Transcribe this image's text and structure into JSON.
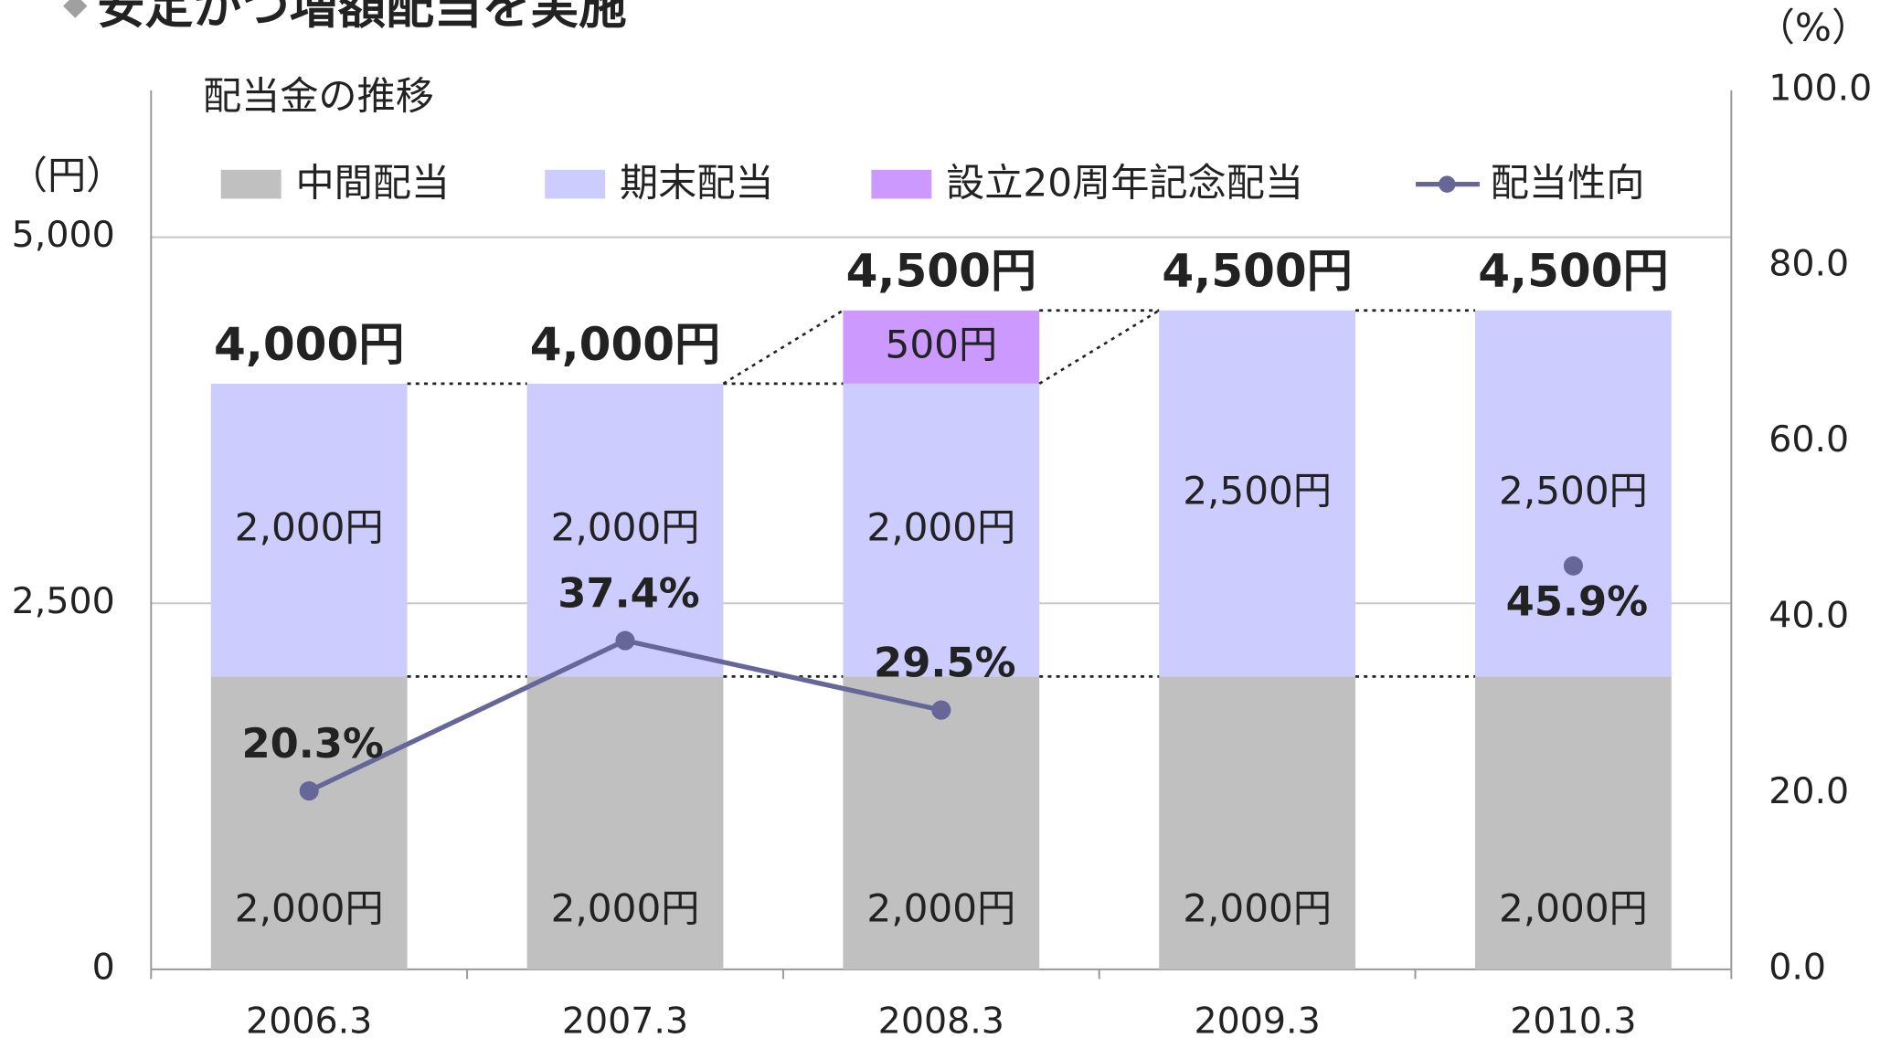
{
  "chart_data": {
    "type": "stacked_bar_line",
    "title": "安定かつ増額配当を実施",
    "subtitle": "配当金の推移",
    "y_label": "（円）",
    "y2_label": "（%）",
    "categories": [
      "2006.3",
      "2007.3",
      "2008.3",
      "2009.3",
      "2010.3"
    ],
    "series": [
      {
        "name": "中間配当",
        "color": "#c0c0c0",
        "values": [
          2000,
          2000,
          2000,
          2000,
          2000
        ],
        "value_labels": [
          "2,000円",
          "2,000円",
          "2,000円",
          "2,000円",
          "2,000円"
        ]
      },
      {
        "name": "期末配当",
        "color": "#ccccff",
        "values": [
          2000,
          2000,
          2000,
          2500,
          2500
        ],
        "value_labels": [
          "2,000円",
          "2,000円",
          "2,000円",
          "2,500円",
          "2,500円"
        ]
      },
      {
        "name": "設立20周年記念配当",
        "color": "#cc99ff",
        "values": [
          null,
          null,
          500,
          null,
          null
        ],
        "value_labels": [
          null,
          null,
          "500円",
          null,
          null
        ]
      },
      {
        "name": "配当性向",
        "color": "#666699",
        "axis": "y2",
        "values": [
          20.3,
          37.4,
          29.5,
          null,
          45.9
        ],
        "value_labels": [
          "20.3%",
          "37.4%",
          "29.5%",
          null,
          "45.9%"
        ]
      }
    ],
    "total_labels": [
      "4,000円",
      "4,000円",
      "4,500円",
      "4,500円",
      "4,500円"
    ],
    "ylim": [
      0,
      5000
    ],
    "yticks": [
      0,
      {
        "value": 2500,
        "label": "2,500"
      },
      {
        "value": 5000,
        "label": "5,000"
      }
    ],
    "y2lim": [
      0,
      100
    ],
    "y2ticks": [
      {
        "value": 0,
        "label": "0.0"
      },
      {
        "value": 20,
        "label": "20.0"
      },
      {
        "value": 40,
        "label": "40.0"
      },
      {
        "value": 60,
        "label": "60.0"
      },
      {
        "value": 80,
        "label": "80.0"
      },
      {
        "value": 100,
        "label": "100.0"
      }
    ],
    "grid": true
  }
}
